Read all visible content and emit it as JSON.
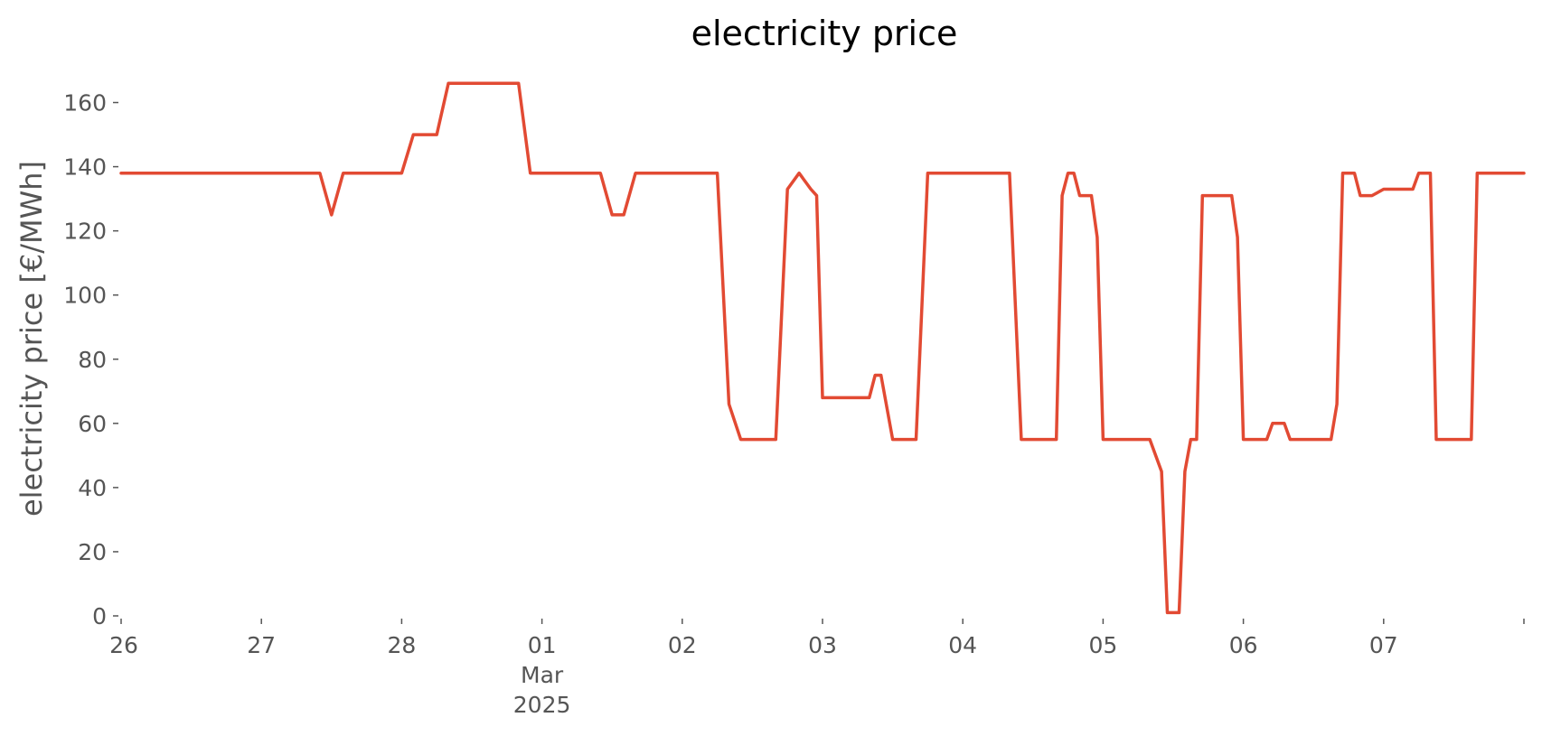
{
  "chart_data": {
    "type": "line",
    "title": "electricity price",
    "xlabel": "",
    "ylabel": "electricity price [€/MWh]",
    "ylim": [
      0,
      170
    ],
    "xlim": [
      "2025-02-26T00:00",
      "2025-03-08T00:00"
    ],
    "yticks": [
      0,
      20,
      40,
      60,
      80,
      100,
      120,
      140,
      160
    ],
    "xticks": [
      {
        "x": "2025-02-26T00:00",
        "label": "26"
      },
      {
        "x": "2025-02-27T00:00",
        "label": "27"
      },
      {
        "x": "2025-02-28T00:00",
        "label": "28"
      },
      {
        "x": "2025-03-01T00:00",
        "label": "01",
        "sublabel": "Mar",
        "sublabel2": "2025"
      },
      {
        "x": "2025-03-02T00:00",
        "label": "02"
      },
      {
        "x": "2025-03-03T00:00",
        "label": "03"
      },
      {
        "x": "2025-03-04T00:00",
        "label": "04"
      },
      {
        "x": "2025-03-05T00:00",
        "label": "05"
      },
      {
        "x": "2025-03-06T00:00",
        "label": "06"
      },
      {
        "x": "2025-03-07T00:00",
        "label": "07"
      },
      {
        "x": "2025-03-08T00:00",
        "label": ""
      }
    ],
    "grid": false,
    "series": [
      {
        "color": "#e24a33",
        "x": [
          "2025-02-26T00:00",
          "2025-02-27T10:00",
          "2025-02-27T12:00",
          "2025-02-27T14:00",
          "2025-02-28T00:00",
          "2025-02-28T02:00",
          "2025-02-28T06:00",
          "2025-02-28T08:00",
          "2025-02-28T20:00",
          "2025-02-28T22:00",
          "2025-03-01T10:00",
          "2025-03-01T12:00",
          "2025-03-01T14:00",
          "2025-03-01T16:00",
          "2025-03-02T06:00",
          "2025-03-02T08:00",
          "2025-03-02T10:00",
          "2025-03-02T16:00",
          "2025-03-02T18:00",
          "2025-03-02T20:00",
          "2025-03-02T22:00",
          "2025-03-02T23:00",
          "2025-03-03T00:00",
          "2025-03-03T02:00",
          "2025-03-03T08:00",
          "2025-03-03T09:00",
          "2025-03-03T10:00",
          "2025-03-03T12:00",
          "2025-03-03T16:00",
          "2025-03-03T18:00",
          "2025-03-04T08:00",
          "2025-03-04T10:00",
          "2025-03-04T16:00",
          "2025-03-04T17:00",
          "2025-03-04T18:00",
          "2025-03-04T19:00",
          "2025-03-04T20:00",
          "2025-03-04T22:00",
          "2025-03-04T23:00",
          "2025-03-05T00:00",
          "2025-03-05T08:00",
          "2025-03-05T10:00",
          "2025-03-05T11:00",
          "2025-03-05T13:00",
          "2025-03-05T14:00",
          "2025-03-05T15:00",
          "2025-03-05T16:00",
          "2025-03-05T17:00",
          "2025-03-05T22:00",
          "2025-03-05T23:00",
          "2025-03-06T00:00",
          "2025-03-06T04:00",
          "2025-03-06T05:00",
          "2025-03-06T06:00",
          "2025-03-06T07:00",
          "2025-03-06T08:00",
          "2025-03-06T15:00",
          "2025-03-06T16:00",
          "2025-03-06T17:00",
          "2025-03-06T19:00",
          "2025-03-06T20:00",
          "2025-03-06T22:00",
          "2025-03-07T00:00",
          "2025-03-07T05:00",
          "2025-03-07T06:00",
          "2025-03-07T08:00",
          "2025-03-07T09:00",
          "2025-03-07T15:00",
          "2025-03-07T16:00",
          "2025-03-08T00:00"
        ],
        "y": [
          138,
          138,
          125,
          138,
          138,
          150,
          150,
          166,
          166,
          138,
          138,
          125,
          125,
          138,
          138,
          66,
          55,
          55,
          133,
          138,
          133,
          131,
          68,
          68,
          68,
          75,
          75,
          55,
          55,
          138,
          138,
          55,
          55,
          131,
          138,
          138,
          131,
          131,
          118,
          55,
          55,
          45,
          1,
          1,
          45,
          55,
          55,
          131,
          131,
          118,
          55,
          55,
          60,
          60,
          60,
          55,
          55,
          66,
          138,
          138,
          131,
          131,
          133,
          133,
          138,
          138,
          55,
          55,
          138,
          138
        ]
      }
    ]
  }
}
